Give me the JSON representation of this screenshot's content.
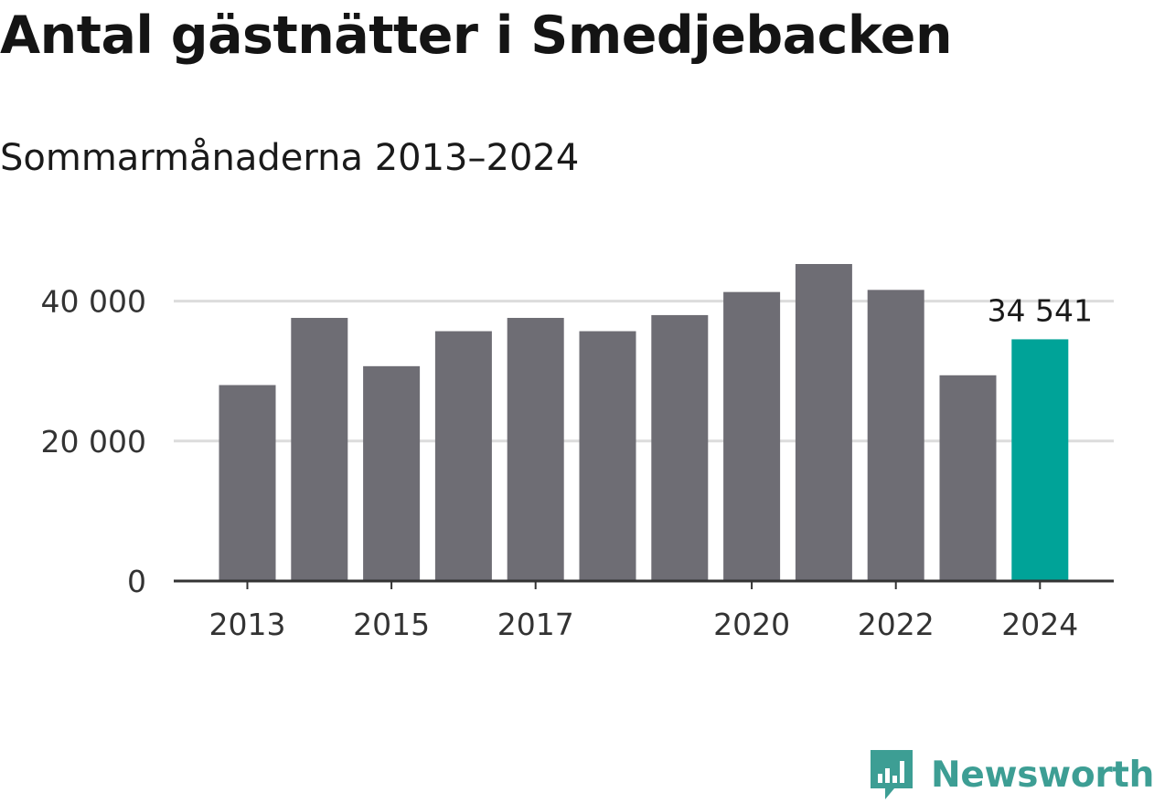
{
  "title": "Antal gästnätter i Smedjebacken",
  "subtitle": "Sommarmånaderna 2013–2024",
  "brand": {
    "name": "Newsworthy",
    "icon": "newsworthy-logo-icon",
    "color": "#3d9e94"
  },
  "chart_data": {
    "type": "bar",
    "categories": [
      "2013",
      "2014",
      "2015",
      "2016",
      "2017",
      "2018",
      "2019",
      "2020",
      "2021",
      "2022",
      "2023",
      "2024"
    ],
    "values": [
      28000,
      37600,
      30700,
      35700,
      37600,
      35700,
      38000,
      41300,
      45300,
      41600,
      29400,
      34541
    ],
    "ylim": [
      0,
      45300
    ],
    "yticks": [
      0,
      20000,
      40000
    ],
    "ytick_labels": [
      "0",
      "20 000",
      "40 000"
    ],
    "xtick_labels": [
      "2013",
      "",
      "2015",
      "",
      "2017",
      "",
      "",
      "2020",
      "",
      "2022",
      "",
      "2024"
    ],
    "highlight_index": 11,
    "highlight_label": "34 541",
    "colors": {
      "bar": "#6e6d74",
      "highlight": "#00a398",
      "grid": "#dcdcdc",
      "axis": "#333333"
    },
    "grid": true
  }
}
